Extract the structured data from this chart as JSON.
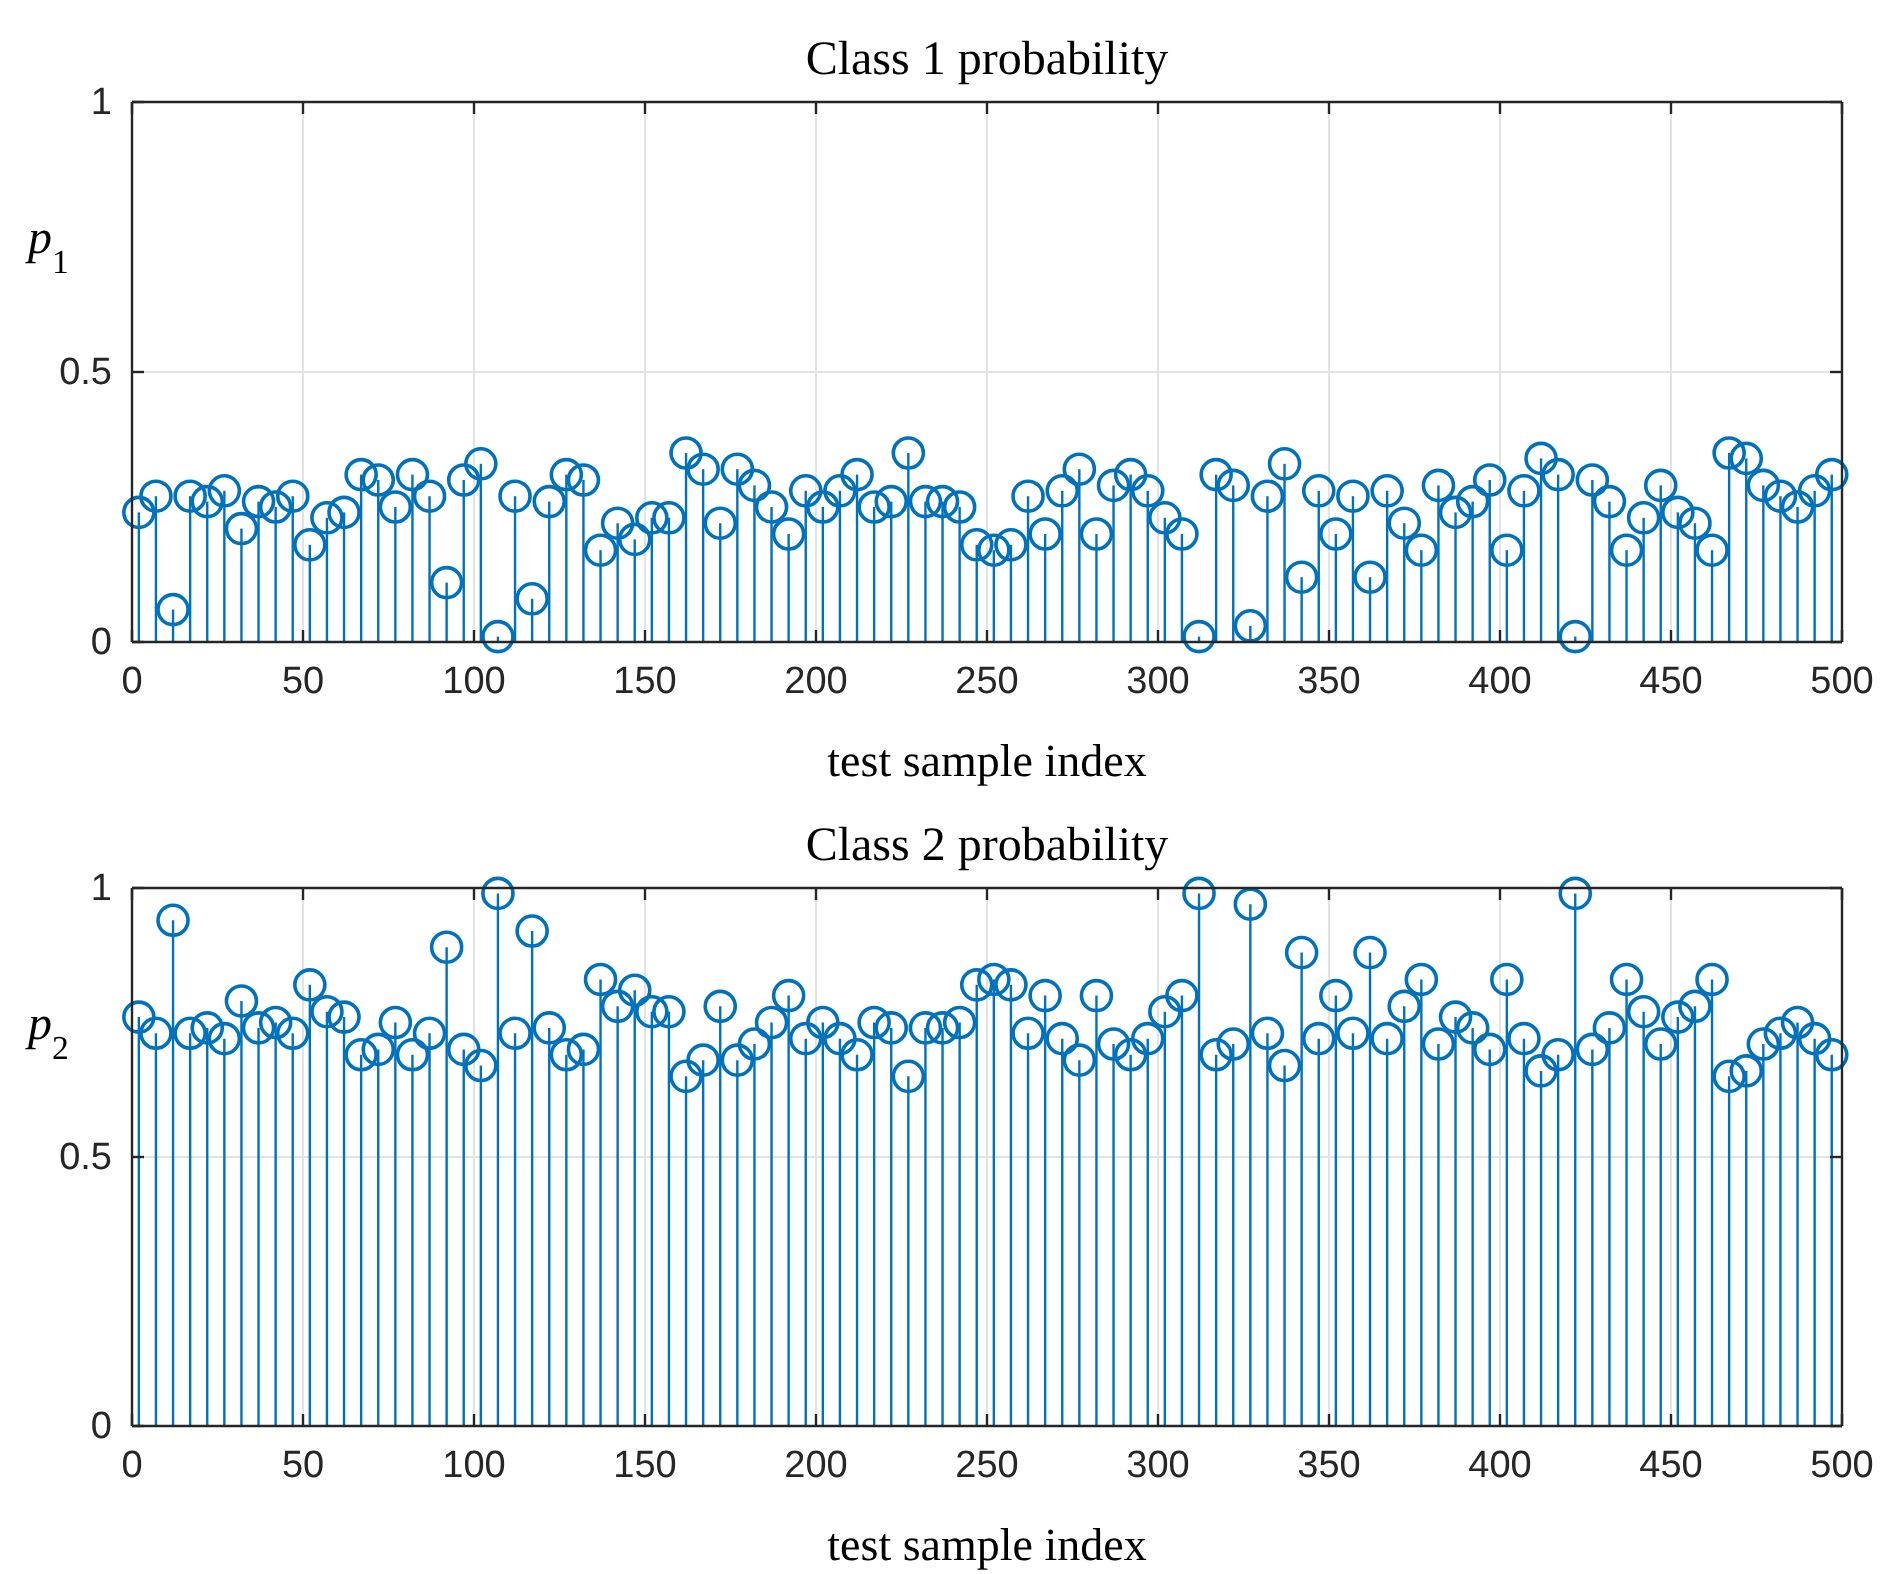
{
  "chart_data": [
    {
      "type": "lollipop",
      "title": "Class 1 probability",
      "xlabel": "test sample index",
      "ylabel": "p$_{1}$",
      "color": "#0072bd",
      "marker": "circle",
      "grid": true,
      "xlim": [
        0,
        500
      ],
      "xticks": [
        0,
        50,
        100,
        150,
        200,
        250,
        300,
        350,
        400,
        450,
        500
      ],
      "ylim": [
        0,
        1
      ],
      "yticks": [
        0,
        0.5,
        1
      ],
      "x": [
        2,
        7,
        12,
        17,
        22,
        27,
        32,
        37,
        42,
        47,
        52,
        57,
        62,
        67,
        72,
        77,
        82,
        87,
        92,
        97,
        102,
        107,
        112,
        117,
        122,
        127,
        132,
        137,
        142,
        147,
        152,
        157,
        162,
        167,
        172,
        177,
        182,
        187,
        192,
        197,
        202,
        207,
        212,
        217,
        222,
        227,
        232,
        237,
        242,
        247,
        252,
        257,
        262,
        267,
        272,
        277,
        282,
        287,
        292,
        297,
        302,
        307,
        312,
        317,
        322,
        327,
        332,
        337,
        342,
        347,
        352,
        357,
        362,
        367,
        372,
        377,
        382,
        387,
        392,
        397,
        402,
        407,
        412,
        417,
        422,
        427,
        432,
        437,
        442,
        447,
        452,
        457,
        462,
        467,
        472,
        477,
        482,
        487,
        492,
        497
      ],
      "values": [
        0.24,
        0.27,
        0.06,
        0.27,
        0.26,
        0.28,
        0.21,
        0.26,
        0.25,
        0.27,
        0.18,
        0.23,
        0.24,
        0.31,
        0.3,
        0.25,
        0.31,
        0.27,
        0.11,
        0.3,
        0.33,
        0.01,
        0.27,
        0.08,
        0.26,
        0.31,
        0.3,
        0.17,
        0.22,
        0.19,
        0.23,
        0.23,
        0.35,
        0.32,
        0.22,
        0.32,
        0.29,
        0.25,
        0.2,
        0.28,
        0.25,
        0.28,
        0.31,
        0.25,
        0.26,
        0.35,
        0.26,
        0.26,
        0.25,
        0.18,
        0.17,
        0.18,
        0.27,
        0.2,
        0.28,
        0.32,
        0.2,
        0.29,
        0.31,
        0.28,
        0.23,
        0.2,
        0.01,
        0.31,
        0.29,
        0.03,
        0.27,
        0.33,
        0.12,
        0.28,
        0.2,
        0.27,
        0.12,
        0.28,
        0.22,
        0.17,
        0.29,
        0.24,
        0.26,
        0.3,
        0.17,
        0.28,
        0.34,
        0.31,
        0.01,
        0.3,
        0.26,
        0.17,
        0.23,
        0.29,
        0.24,
        0.22,
        0.17,
        0.35,
        0.34,
        0.29,
        0.27,
        0.25,
        0.28,
        0.31
      ]
    },
    {
      "type": "lollipop",
      "title": "Class 2 probability",
      "xlabel": "test sample index",
      "ylabel": "p$_{2}$",
      "color": "#0072bd",
      "marker": "circle",
      "grid": true,
      "xlim": [
        0,
        500
      ],
      "xticks": [
        0,
        50,
        100,
        150,
        200,
        250,
        300,
        350,
        400,
        450,
        500
      ],
      "ylim": [
        0,
        1
      ],
      "yticks": [
        0,
        0.5,
        1
      ],
      "x": [
        2,
        7,
        12,
        17,
        22,
        27,
        32,
        37,
        42,
        47,
        52,
        57,
        62,
        67,
        72,
        77,
        82,
        87,
        92,
        97,
        102,
        107,
        112,
        117,
        122,
        127,
        132,
        137,
        142,
        147,
        152,
        157,
        162,
        167,
        172,
        177,
        182,
        187,
        192,
        197,
        202,
        207,
        212,
        217,
        222,
        227,
        232,
        237,
        242,
        247,
        252,
        257,
        262,
        267,
        272,
        277,
        282,
        287,
        292,
        297,
        302,
        307,
        312,
        317,
        322,
        327,
        332,
        337,
        342,
        347,
        352,
        357,
        362,
        367,
        372,
        377,
        382,
        387,
        392,
        397,
        402,
        407,
        412,
        417,
        422,
        427,
        432,
        437,
        442,
        447,
        452,
        457,
        462,
        467,
        472,
        477,
        482,
        487,
        492,
        497
      ],
      "values": [
        0.76,
        0.73,
        0.94,
        0.73,
        0.74,
        0.72,
        0.79,
        0.74,
        0.75,
        0.73,
        0.82,
        0.77,
        0.76,
        0.69,
        0.7,
        0.75,
        0.69,
        0.73,
        0.89,
        0.7,
        0.67,
        0.99,
        0.73,
        0.92,
        0.74,
        0.69,
        0.7,
        0.83,
        0.78,
        0.81,
        0.77,
        0.77,
        0.65,
        0.68,
        0.78,
        0.68,
        0.71,
        0.75,
        0.8,
        0.72,
        0.75,
        0.72,
        0.69,
        0.75,
        0.74,
        0.65,
        0.74,
        0.74,
        0.75,
        0.82,
        0.83,
        0.82,
        0.73,
        0.8,
        0.72,
        0.68,
        0.8,
        0.71,
        0.69,
        0.72,
        0.77,
        0.8,
        0.99,
        0.69,
        0.71,
        0.97,
        0.73,
        0.67,
        0.88,
        0.72,
        0.8,
        0.73,
        0.88,
        0.72,
        0.78,
        0.83,
        0.71,
        0.76,
        0.74,
        0.7,
        0.83,
        0.72,
        0.66,
        0.69,
        0.99,
        0.7,
        0.74,
        0.83,
        0.77,
        0.71,
        0.76,
        0.78,
        0.83,
        0.65,
        0.66,
        0.71,
        0.73,
        0.75,
        0.72,
        0.69
      ]
    }
  ]
}
